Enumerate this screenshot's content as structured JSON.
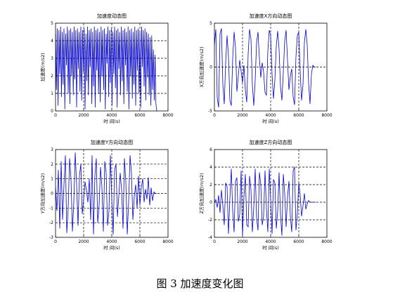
{
  "caption": "图 3  加速度变化图",
  "chart_data": [
    {
      "type": "line",
      "title": "加速度动态图",
      "xlabel": "时 间(s)",
      "ylabel": "加速度(m/s2)",
      "xlim": [
        0,
        8000
      ],
      "ylim": [
        0,
        5
      ],
      "xticks": [
        0,
        2000,
        4000,
        6000,
        8000
      ],
      "yticks": [
        0,
        1,
        2,
        3,
        4,
        5
      ],
      "grid": "dashed",
      "series": [
        {
          "color": "#0000cc",
          "x": [
            0,
            60,
            120,
            180,
            240,
            300,
            360,
            420,
            480,
            540,
            600,
            660,
            720,
            780,
            840,
            900,
            960,
            1020,
            1080,
            1140,
            1200,
            1260,
            1320,
            1380,
            1440,
            1500,
            1560,
            1620,
            1680,
            1740,
            1800,
            1860,
            1920,
            1980,
            2040,
            2100,
            2160,
            2220,
            2280,
            2340,
            2400,
            2460,
            2520,
            2580,
            2640,
            2700,
            2760,
            2820,
            2880,
            2940,
            3000,
            3060,
            3120,
            3180,
            3240,
            3300,
            3360,
            3420,
            3480,
            3540,
            3600,
            3660,
            3720,
            3780,
            3840,
            3900,
            3960,
            4020,
            4080,
            4140,
            4200,
            4260,
            4320,
            4380,
            4440,
            4500,
            4560,
            4620,
            4680,
            4740,
            4800,
            4860,
            4920,
            4980,
            5040,
            5100,
            5160,
            5220,
            5280,
            5340,
            5400,
            5460,
            5520,
            5580,
            5640,
            5700,
            5760,
            5820,
            5880,
            5940,
            6000,
            6060,
            6120,
            6180,
            6240,
            6300,
            6360,
            6420,
            6480,
            6540,
            6600,
            6660,
            6720,
            6780,
            6840,
            6900,
            6960,
            7020,
            7080,
            7140,
            7200
          ],
          "y": [
            4.4,
            1.2,
            4.7,
            0.3,
            4.6,
            2.1,
            4.8,
            0.8,
            4.5,
            1.5,
            4.7,
            0.1,
            4.4,
            2.6,
            4.8,
            1.0,
            4.6,
            0.4,
            4.7,
            2.0,
            4.5,
            0.9,
            4.8,
            1.8,
            4.6,
            0.2,
            4.7,
            2.4,
            4.5,
            1.1,
            4.8,
            0.6,
            4.6,
            2.2,
            4.7,
            0.1,
            4.4,
            1.7,
            4.8,
            0.9,
            4.6,
            2.5,
            4.7,
            0.4,
            4.5,
            1.4,
            4.8,
            0.2,
            4.6,
            2.3,
            4.7,
            1.0,
            4.5,
            0.5,
            4.8,
            2.0,
            4.6,
            1.2,
            4.7,
            0.1,
            4.4,
            2.7,
            4.8,
            0.8,
            4.6,
            1.6,
            4.7,
            0.3,
            4.5,
            2.1,
            4.8,
            1.3,
            4.6,
            0.2,
            4.7,
            2.4,
            4.5,
            0.9,
            4.8,
            1.7,
            4.6,
            0.4,
            4.7,
            2.6,
            4.5,
            1.1,
            4.8,
            0.1,
            4.6,
            2.0,
            4.7,
            0.7,
            4.5,
            1.5,
            4.8,
            0.3,
            4.6,
            2.3,
            4.7,
            1.0,
            4.5,
            0.2,
            4.8,
            2.5,
            4.6,
            1.4,
            4.7,
            0.6,
            4.5,
            1.9,
            4.4,
            0.9,
            4.2,
            0.3,
            4.3,
            1.2,
            3.5,
            0.6,
            3.2,
            0.4,
            0.0
          ]
        }
      ]
    },
    {
      "type": "line",
      "title": "加速度X方向动态图",
      "xlabel": "时 间(s)",
      "ylabel": "X方向加速度(m/s2)",
      "xlim": [
        0,
        8000
      ],
      "ylim": [
        -5,
        5
      ],
      "xticks": [
        0,
        2000,
        4000,
        6000,
        8000
      ],
      "yticks": [
        -5,
        0,
        5
      ],
      "grid": "dashed",
      "series": [
        {
          "color": "#0000cc",
          "x": [
            0,
            100,
            200,
            300,
            400,
            500,
            600,
            700,
            800,
            900,
            1000,
            1100,
            1200,
            1300,
            1400,
            1500,
            1600,
            1700,
            1800,
            1900,
            2000,
            2100,
            2200,
            2300,
            2400,
            2500,
            2600,
            2700,
            2800,
            2900,
            3000,
            3100,
            3200,
            3300,
            3400,
            3500,
            3600,
            3700,
            3800,
            3900,
            4000,
            4100,
            4200,
            4300,
            4400,
            4500,
            4600,
            4700,
            4800,
            4900,
            5000,
            5100,
            5200,
            5300,
            5400,
            5500,
            5600,
            5700,
            5800,
            5900,
            6000,
            6100,
            6200,
            6300,
            6400,
            6500,
            6600,
            6700,
            6800,
            6900,
            7000,
            7100,
            7200
          ],
          "y": [
            2.5,
            4.3,
            -3.5,
            -4.6,
            3.8,
            4.4,
            -2.0,
            -4.2,
            0.5,
            3.6,
            1.2,
            -3.8,
            -4.4,
            1.0,
            4.0,
            2.2,
            -2.8,
            -1.0,
            0.8,
            -0.5,
            -1.8,
            0.2,
            -2.6,
            -4.0,
            1.5,
            4.3,
            3.2,
            -2.0,
            -4.4,
            -1.5,
            2.8,
            4.0,
            1.0,
            -1.2,
            0.5,
            -0.6,
            -2.9,
            -3.2,
            1.8,
            4.2,
            3.6,
            -0.8,
            -3.6,
            -1.5,
            2.4,
            4.1,
            2.0,
            -2.2,
            -3.8,
            -0.6,
            3.0,
            4.2,
            0.8,
            -2.6,
            -1.0,
            -0.2,
            -3.4,
            -4.3,
            1.2,
            3.6,
            4.0,
            -0.5,
            -3.8,
            -2.0,
            2.8,
            4.3,
            2.5,
            -1.8,
            -4.2,
            -0.8,
            0.2,
            0.0,
            0.0
          ]
        }
      ]
    },
    {
      "type": "line",
      "title": "加速度Y方向动态图",
      "xlabel": "时 间(s)",
      "ylabel": "Y方向加速度(m/s2)",
      "xlim": [
        0,
        8000
      ],
      "ylim": [
        -3,
        3
      ],
      "xticks": [
        0,
        2000,
        4000,
        6000,
        8000
      ],
      "yticks": [
        -3,
        -2,
        -1,
        0,
        1,
        2,
        3
      ],
      "grid": "dashed",
      "series": [
        {
          "color": "#0000cc",
          "x": [
            0,
            100,
            200,
            300,
            400,
            500,
            600,
            700,
            800,
            900,
            1000,
            1100,
            1200,
            1300,
            1400,
            1500,
            1600,
            1700,
            1800,
            1900,
            2000,
            2100,
            2200,
            2300,
            2400,
            2500,
            2600,
            2700,
            2800,
            2900,
            3000,
            3100,
            3200,
            3300,
            3400,
            3500,
            3600,
            3700,
            3800,
            3900,
            4000,
            4100,
            4200,
            4300,
            4400,
            4500,
            4600,
            4700,
            4800,
            4900,
            5000,
            5100,
            5200,
            5300,
            5400,
            5500,
            5600,
            5700,
            5800,
            5900,
            6000,
            6100,
            6200,
            6300,
            6400,
            6500,
            6600,
            6700,
            6800,
            6900,
            7000,
            7100,
            7200
          ],
          "y": [
            0.4,
            -1.2,
            1.6,
            -2.4,
            2.2,
            -1.8,
            0.6,
            2.6,
            -2.7,
            -1.0,
            2.4,
            1.0,
            -2.6,
            -0.6,
            2.8,
            0.6,
            -2.2,
            1.2,
            2.0,
            -1.4,
            -0.4,
            0.8,
            0.2,
            -0.6,
            1.0,
            -1.8,
            2.6,
            -2.8,
            1.2,
            2.4,
            -2.0,
            -0.8,
            1.8,
            0.4,
            -2.6,
            2.2,
            1.4,
            -2.2,
            -1.2,
            2.6,
            -0.4,
            -2.8,
            1.6,
            2.0,
            -1.6,
            -0.2,
            1.4,
            0.2,
            -2.4,
            2.4,
            0.8,
            -2.8,
            -0.6,
            2.6,
            1.4,
            -1.8,
            -0.2,
            0.6,
            -1.0,
            1.2,
            -0.8,
            0.4,
            1.0,
            -0.6,
            0.3,
            -0.4,
            1.1,
            -0.8,
            0.4,
            -0.5,
            0.1,
            0.0,
            0.0
          ]
        }
      ]
    },
    {
      "type": "line",
      "title": "加速度Z方向动态图",
      "xlabel": "时 间(s)",
      "ylabel": "Z方向加速度(m/s2)",
      "xlim": [
        0,
        8000
      ],
      "ylim": [
        -4,
        6
      ],
      "xticks": [
        0,
        2000,
        4000,
        6000,
        8000
      ],
      "yticks": [
        -4,
        -2,
        0,
        2,
        4,
        6
      ],
      "grid": "dashed",
      "series": [
        {
          "color": "#0000cc",
          "x": [
            0,
            100,
            200,
            300,
            400,
            500,
            600,
            700,
            800,
            900,
            1000,
            1100,
            1200,
            1300,
            1400,
            1500,
            1600,
            1700,
            1800,
            1900,
            2000,
            2100,
            2200,
            2300,
            2400,
            2500,
            2600,
            2700,
            2800,
            2900,
            3000,
            3100,
            3200,
            3300,
            3400,
            3500,
            3600,
            3700,
            3800,
            3900,
            4000,
            4100,
            4200,
            4300,
            4400,
            4500,
            4600,
            4700,
            4800,
            4900,
            5000,
            5100,
            5200,
            5300,
            5400,
            5500,
            5600,
            5700,
            5800,
            5900,
            6000,
            6100,
            6200,
            6300,
            6400,
            6500,
            6600,
            6700,
            6800,
            6900,
            7000,
            7100,
            7200
          ],
          "y": [
            0.0,
            0.3,
            -0.6,
            0.8,
            -1.2,
            1.4,
            -0.4,
            -2.6,
            2.2,
            1.8,
            -3.6,
            0.4,
            3.8,
            -1.0,
            -3.4,
            2.4,
            2.8,
            -2.2,
            -1.4,
            3.6,
            -3.8,
            0.6,
            3.2,
            -2.6,
            -2.8,
            3.0,
            1.4,
            -3.4,
            -0.6,
            3.8,
            -1.8,
            -3.2,
            3.4,
            2.0,
            -2.6,
            -1.6,
            3.6,
            -0.8,
            -3.4,
            3.8,
            0.4,
            -3.6,
            2.6,
            2.2,
            -3.0,
            -1.0,
            3.4,
            -1.4,
            -3.8,
            3.2,
            1.0,
            -2.8,
            0.6,
            2.4,
            -1.6,
            -3.4,
            3.6,
            4.0,
            -3.2,
            -1.2,
            2.2,
            0.8,
            -1.6,
            -0.4,
            1.0,
            -0.8,
            -0.2,
            0.2,
            0.0,
            0.0,
            0.0,
            0.0,
            0.0
          ]
        }
      ]
    }
  ]
}
